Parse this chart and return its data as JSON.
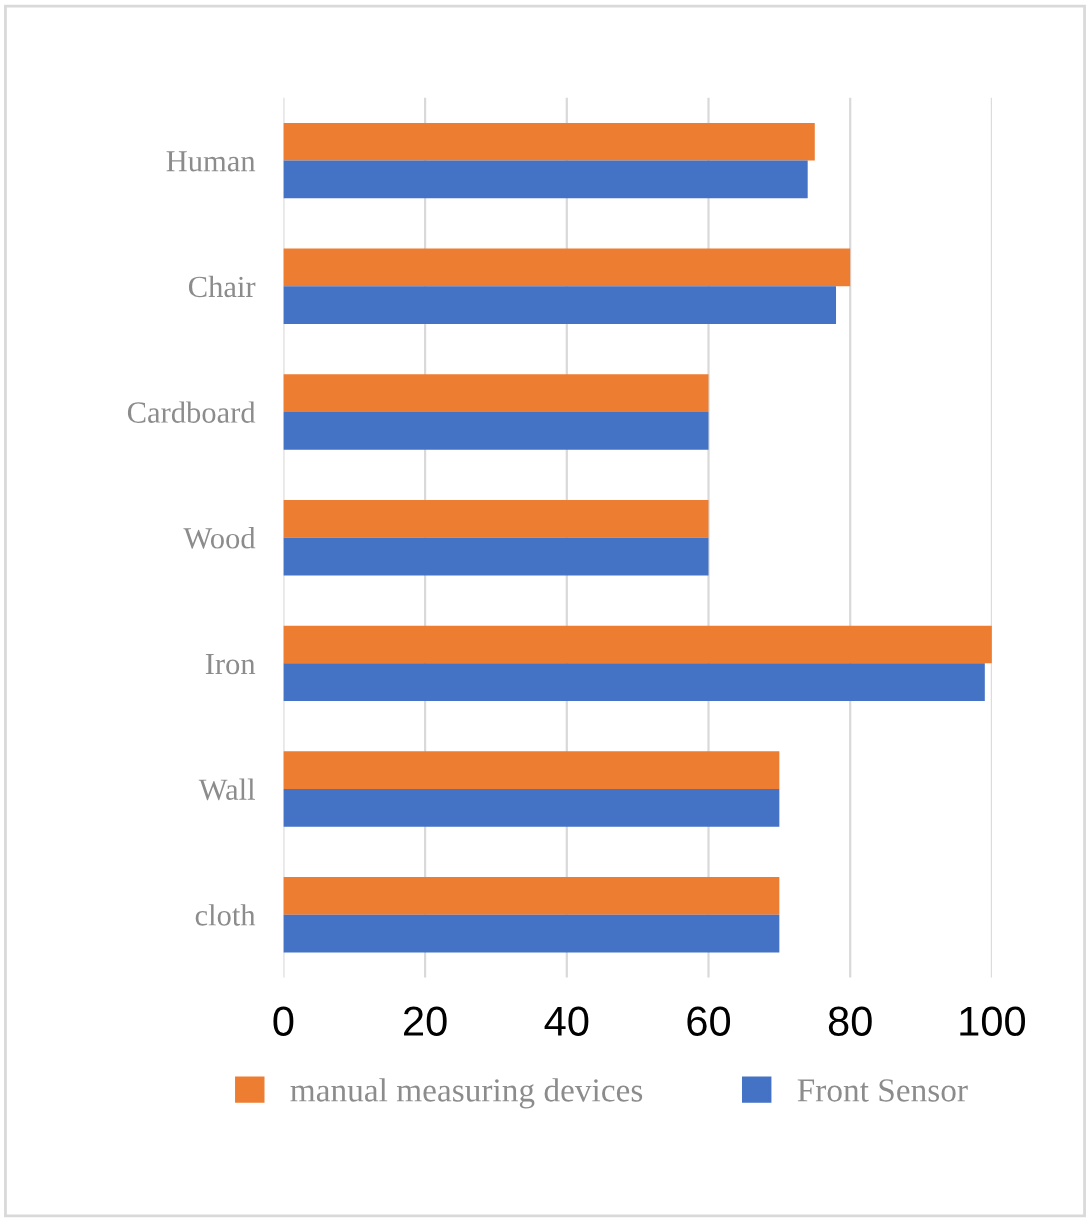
{
  "chart_data": {
    "type": "bar",
    "orientation": "horizontal",
    "categories": [
      "Human",
      "Chair",
      "Cardboard",
      "Wood",
      "Iron",
      "Wall",
      "cloth"
    ],
    "series": [
      {
        "name": "manual measuring devices",
        "color": "#ed7d31",
        "values": [
          75,
          80,
          60,
          60,
          100,
          70,
          70
        ]
      },
      {
        "name": "Front Sensor",
        "color": "#4472c4",
        "values": [
          74,
          78,
          60,
          60,
          99,
          70,
          70
        ]
      }
    ],
    "xlim": [
      0,
      100
    ],
    "xticks": [
      0,
      20,
      40,
      60,
      80,
      100
    ],
    "grid": "x",
    "legend": "bottom"
  }
}
